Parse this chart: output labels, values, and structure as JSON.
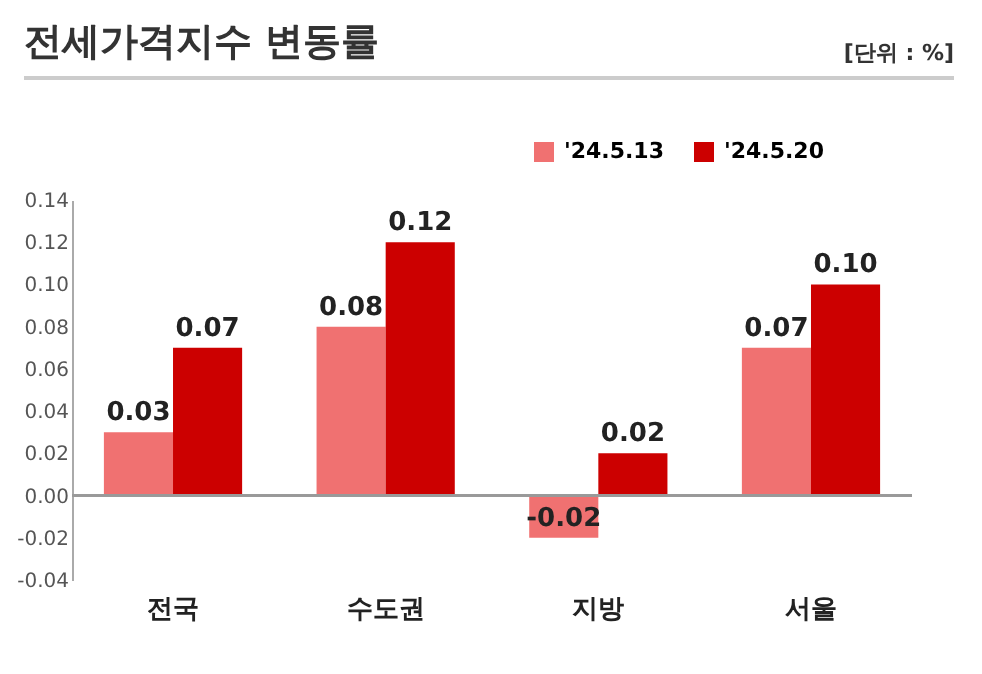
{
  "chart_data": {
    "type": "bar",
    "title": "전세가격지수 변동률",
    "annotations": [
      "[단위 : %]"
    ],
    "categories": [
      "전국",
      "수도권",
      "지방",
      "서울"
    ],
    "series": [
      {
        "name": "'24.5.13",
        "color": "#f07171",
        "values": [
          0.03,
          0.08,
          -0.02,
          0.07
        ],
        "value_labels": [
          "0.03",
          "0.08",
          "-0.02",
          "0.07"
        ]
      },
      {
        "name": "'24.5.20",
        "color": "#cc0000",
        "values": [
          0.07,
          0.12,
          0.02,
          0.1
        ],
        "value_labels": [
          "0.07",
          "0.12",
          "0.02",
          "0.10"
        ]
      }
    ],
    "ylim": [
      -0.04,
      0.14
    ],
    "yticks": [
      {
        "value": -0.04,
        "label": "-0.04"
      },
      {
        "value": -0.02,
        "label": "-0.02"
      },
      {
        "value": 0,
        "label": "0.00"
      },
      {
        "value": 0.02,
        "label": "0.02"
      },
      {
        "value": 0.04,
        "label": "0.04"
      },
      {
        "value": 0.06,
        "label": "0.06"
      },
      {
        "value": 0.08,
        "label": "0.08"
      },
      {
        "value": 0.1,
        "label": "0.10"
      },
      {
        "value": 0.12,
        "label": "0.12"
      },
      {
        "value": 0.14,
        "label": "0.14"
      }
    ],
    "ref_lines": [
      {
        "axis": "y",
        "value": 0,
        "color": "#999999"
      }
    ],
    "grid": false,
    "legend": "top right"
  }
}
